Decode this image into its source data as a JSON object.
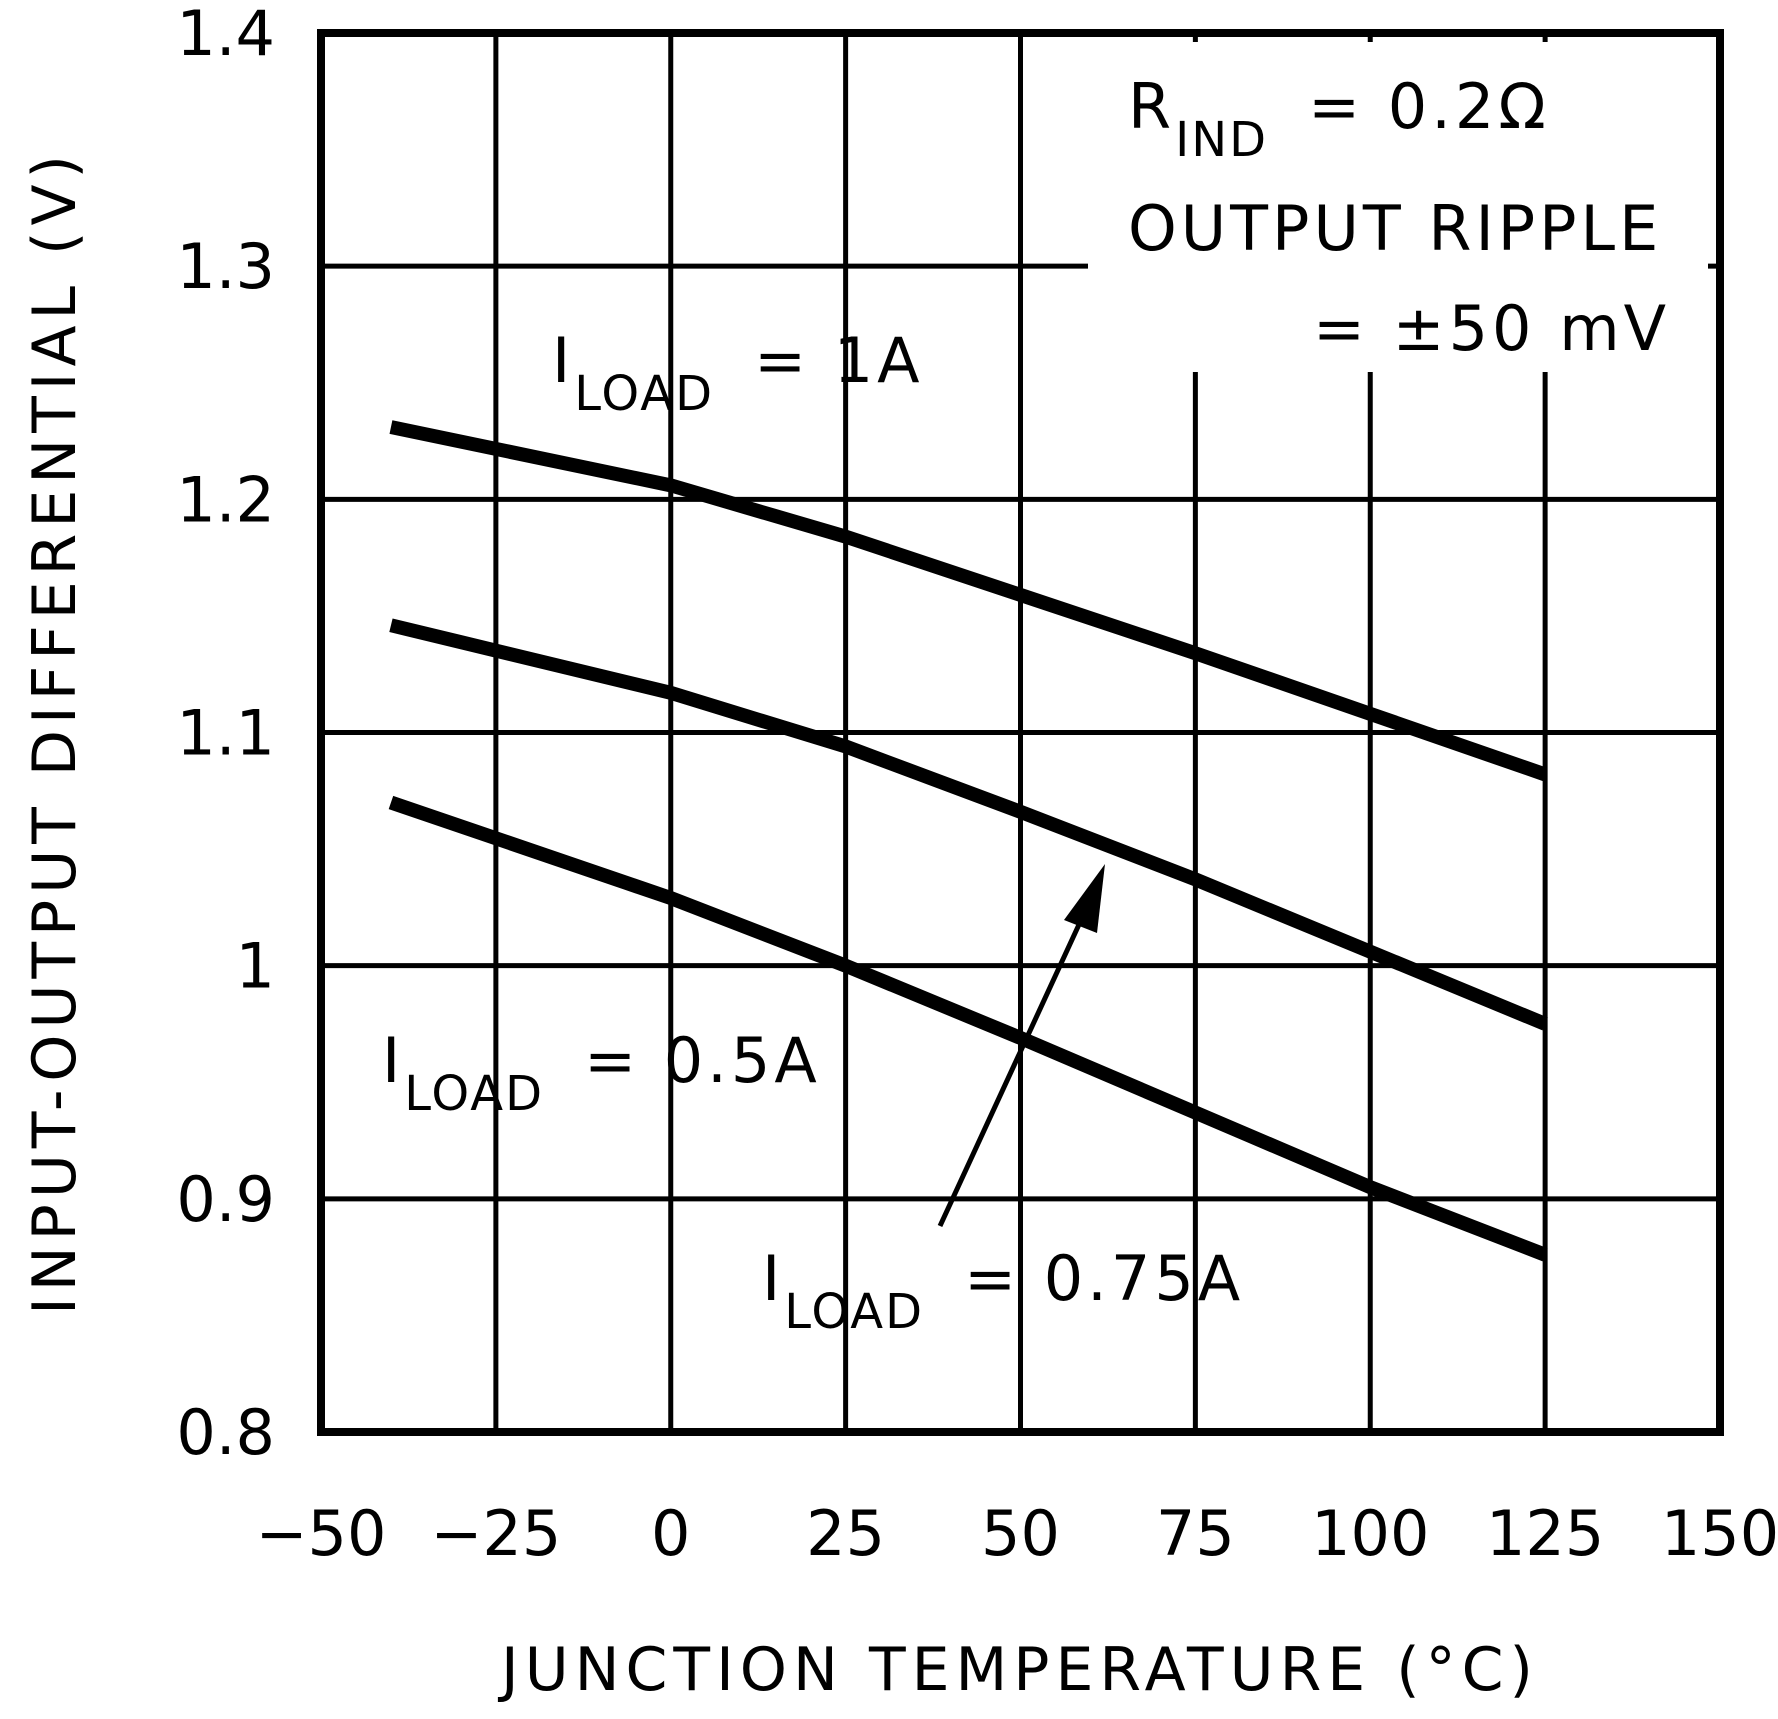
{
  "chart_data": {
    "type": "line",
    "title": "",
    "xlabel": "JUNCTION TEMPERATURE (°C)",
    "ylabel": "INPUT-OUTPUT DIFFERENTIAL (V)",
    "xlim": [
      -50,
      150
    ],
    "ylim": [
      0.8,
      1.4
    ],
    "xticks": [
      -50,
      -25,
      0,
      25,
      50,
      75,
      100,
      125,
      150
    ],
    "xtick_labels": [
      "−50",
      "−25",
      "0",
      "25",
      "50",
      "75",
      "100",
      "125",
      "150"
    ],
    "yticks": [
      0.8,
      0.9,
      1.0,
      1.1,
      1.2,
      1.3,
      1.4
    ],
    "ytick_labels": [
      "0.8",
      "0.9",
      "1",
      "1.1",
      "1.2",
      "1.3",
      "1.4"
    ],
    "grid": true,
    "legend": "none (curves labeled inline)",
    "x": [
      -40,
      0,
      25,
      50,
      75,
      100,
      125
    ],
    "series": [
      {
        "name": "ILOAD = 1A",
        "values": [
          1.231,
          1.206,
          1.184,
          1.159,
          1.134,
          1.108,
          1.082
        ]
      },
      {
        "name": "ILOAD = 0.75A",
        "values": [
          1.146,
          1.117,
          1.094,
          1.066,
          1.037,
          1.006,
          0.975
        ]
      },
      {
        "name": "ILOAD = 0.5A",
        "values": [
          1.07,
          1.029,
          1.0,
          0.969,
          0.937,
          0.905,
          0.876
        ]
      }
    ],
    "annotations": [
      {
        "text": "RIND = 0.2Ω",
        "position": "top-right"
      },
      {
        "text": "OUTPUT RIPPLE = ±50 mV",
        "position": "top-right"
      },
      {
        "text": "ILOAD = 1A",
        "position": "above top curve"
      },
      {
        "text": "ILOAD = 0.5A",
        "position": "below bottom curve, left"
      },
      {
        "text": "ILOAD = 0.75A",
        "position": "bottom, with arrow pointing to middle curve"
      }
    ]
  },
  "labels": {
    "ylabel": "INPUT-OUTPUT DIFFERENTIAL (V)",
    "xlabel": "JUNCTION TEMPERATURE (°C)",
    "rind_main": "R",
    "rind_sub": "IND",
    "rind_value": "= 0.2Ω",
    "ripple_line1": "OUTPUT RIPPLE",
    "ripple_line2": "= ±50 mV",
    "i_main": "I",
    "i_sub": "LOAD",
    "load1_value": "= 1A",
    "load05_value": "= 0.5A",
    "load075_value": "= 0.75A"
  },
  "colors": {
    "line": "#000000",
    "background": "#ffffff"
  }
}
